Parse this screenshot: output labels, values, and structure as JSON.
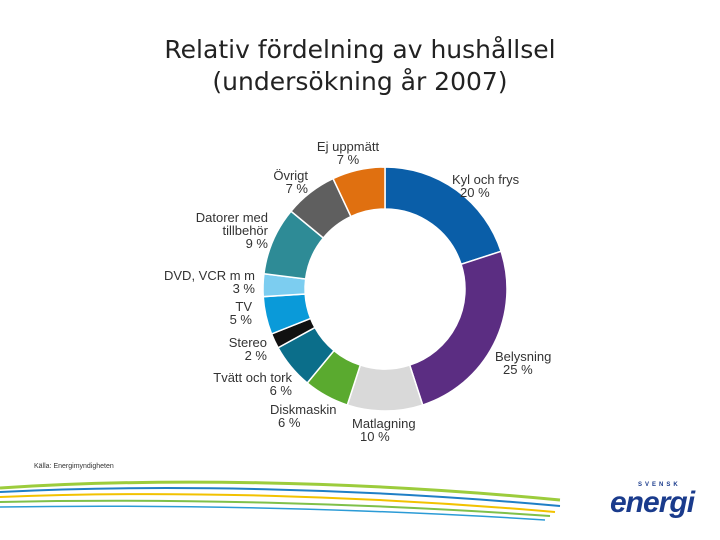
{
  "title": {
    "line1": "Relativ fördelning av hushållsel",
    "line2": "(undersökning år 2007)"
  },
  "source": "Källa: Energimyndigheten",
  "logo": {
    "top_text": "SVENSK",
    "main_text": "energi",
    "color": "#1a3b8c"
  },
  "chart_data": {
    "type": "donut",
    "title": "Relativ fördelning av hushållsel (undersökning år 2007)",
    "unit": "%",
    "slices": [
      {
        "label": "Kyl och frys",
        "value": 20,
        "value_label": "20 %",
        "color": "#0a5ea8"
      },
      {
        "label": "Belysning",
        "value": 25,
        "value_label": "25 %",
        "color": "#5b2d82"
      },
      {
        "label": "Matlagning",
        "value": 10,
        "value_label": "10 %",
        "color": "#d9d9d9"
      },
      {
        "label": "Diskmaskin",
        "value": 6,
        "value_label": "6 %",
        "color": "#5aaa2f"
      },
      {
        "label": "Tvätt och tork",
        "value": 6,
        "value_label": "6 %",
        "color": "#0b6e8a"
      },
      {
        "label": "Stereo",
        "value": 2,
        "value_label": "2 %",
        "color": "#111111"
      },
      {
        "label": "TV",
        "value": 5,
        "value_label": "5 %",
        "color": "#0a9ad9"
      },
      {
        "label": "DVD, VCR m m",
        "value": 3,
        "value_label": "3 %",
        "color": "#7ccdf0"
      },
      {
        "label": "Datorer med tillbehör",
        "value": 9,
        "value_label": "9 %",
        "color": "#2e8b96"
      },
      {
        "label": "Övrigt",
        "value": 7,
        "value_label": "7 %",
        "color": "#5f5f5f"
      },
      {
        "label": "Ej uppmätt",
        "value": 7,
        "value_label": "7 %",
        "color": "#e07010"
      }
    ]
  }
}
